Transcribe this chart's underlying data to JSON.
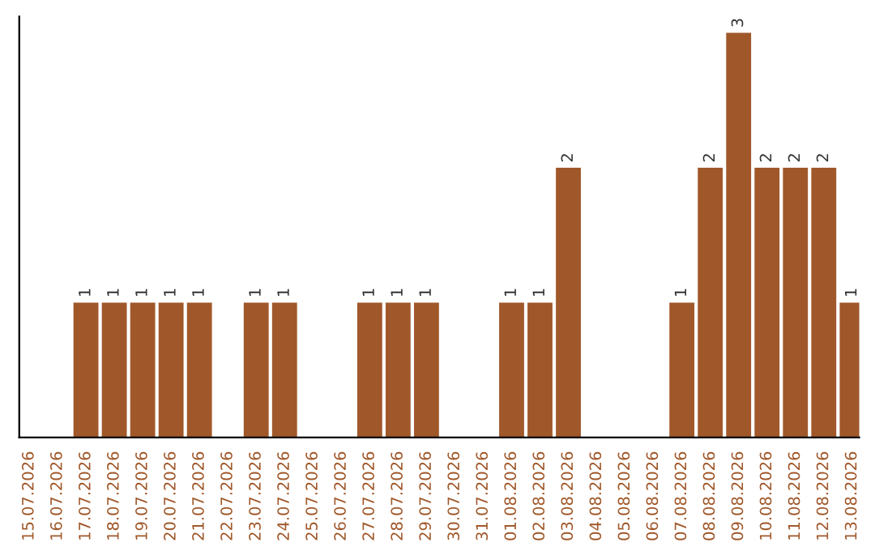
{
  "chart_data": {
    "type": "bar",
    "categories": [
      "15.07.2026",
      "16.07.2026",
      "17.07.2026",
      "18.07.2026",
      "19.07.2026",
      "20.07.2026",
      "21.07.2026",
      "22.07.2026",
      "23.07.2026",
      "24.07.2026",
      "25.07.2026",
      "26.07.2026",
      "27.07.2026",
      "28.07.2026",
      "29.07.2026",
      "30.07.2026",
      "31.07.2026",
      "01.08.2026",
      "02.08.2026",
      "03.08.2026",
      "04.08.2026",
      "05.08.2026",
      "06.08.2026",
      "07.08.2026",
      "08.08.2026",
      "09.08.2026",
      "10.08.2026",
      "11.08.2026",
      "12.08.2026",
      "13.08.2026"
    ],
    "values": [
      null,
      null,
      1,
      1,
      1,
      1,
      1,
      null,
      1,
      1,
      null,
      null,
      1,
      1,
      1,
      null,
      null,
      1,
      1,
      2,
      null,
      null,
      null,
      1,
      2,
      3,
      2,
      2,
      2,
      1
    ],
    "color": "#a0582a",
    "ylim": [
      0,
      3.12
    ],
    "tick_labels": "x",
    "data_labels": true,
    "grid": false,
    "legend": false
  }
}
